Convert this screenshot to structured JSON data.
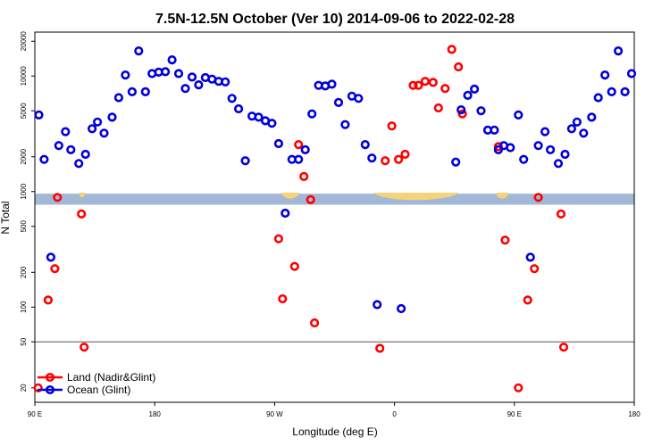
{
  "chart_data": {
    "type": "scatter",
    "title": "7.5N-12.5N October (Ver 10)   2014-09-06 to 2022-02-28",
    "xlabel": "Longitude (deg E)",
    "ylabel": "N Total",
    "x_ticks": [
      {
        "value": 0,
        "label": "90 E"
      },
      {
        "value": 90,
        "label": "180"
      },
      {
        "value": 180,
        "label": "90 W"
      },
      {
        "value": 270,
        "label": "0"
      },
      {
        "value": 360,
        "label": "90 E"
      },
      {
        "value": 450,
        "label": "180"
      }
    ],
    "y_ticks": [
      {
        "value": 20,
        "label": "20"
      },
      {
        "value": 50,
        "label": "50"
      },
      {
        "value": 100,
        "label": "100"
      },
      {
        "value": 200,
        "label": "200"
      },
      {
        "value": 500,
        "label": "500"
      },
      {
        "value": 1000,
        "label": "1000"
      },
      {
        "value": 2000,
        "label": "2000"
      },
      {
        "value": 5000,
        "label": "5000"
      },
      {
        "value": 10000,
        "label": "10000"
      },
      {
        "value": 20000,
        "label": "20000"
      }
    ],
    "xlim": [
      0,
      450
    ],
    "ylim": [
      15,
      24000
    ],
    "y_scale": "log",
    "reference_line": 50,
    "land_band": [
      770,
      960
    ],
    "colors": {
      "land": "#ff0000",
      "ocean": "#0000dd",
      "band": "#a3b8d6",
      "land_fill": "#f5d37a"
    },
    "legend": [
      {
        "name": "Land (Nadir&Glint)",
        "color": "#ff0000"
      },
      {
        "name": "Ocean (Glint)",
        "color": "#0000dd"
      }
    ],
    "series": [
      {
        "name": "Land (Nadir&Glint)",
        "color": "#ff0000",
        "points": [
          [
            2.5,
            20
          ],
          [
            10,
            115
          ],
          [
            15,
            215
          ],
          [
            17,
            890
          ],
          [
            35,
            640
          ],
          [
            37,
            45
          ],
          [
            183,
            390
          ],
          [
            186,
            118
          ],
          [
            195,
            225
          ],
          [
            198,
            2550
          ],
          [
            202,
            1350
          ],
          [
            207,
            850
          ],
          [
            210,
            73
          ],
          [
            259,
            44
          ],
          [
            263,
            1850
          ],
          [
            268,
            3700
          ],
          [
            273,
            1900
          ],
          [
            278,
            2100
          ],
          [
            284,
            8300
          ],
          [
            288,
            8300
          ],
          [
            293,
            9000
          ],
          [
            299,
            8800
          ],
          [
            303,
            5300
          ],
          [
            308,
            7800
          ],
          [
            313,
            17000
          ],
          [
            318,
            12000
          ],
          [
            321,
            4700
          ],
          [
            348,
            2450
          ],
          [
            353,
            380
          ],
          [
            363,
            20
          ],
          [
            370,
            115
          ],
          [
            375,
            215
          ],
          [
            378,
            890
          ],
          [
            395,
            640
          ],
          [
            397,
            45
          ]
        ]
      },
      {
        "name": "Ocean (Glint)",
        "color": "#0000dd",
        "points": [
          [
            3,
            4600
          ],
          [
            7,
            1900
          ],
          [
            12,
            270
          ],
          [
            18,
            2500
          ],
          [
            23,
            3300
          ],
          [
            27,
            2300
          ],
          [
            33,
            1750
          ],
          [
            38,
            2100
          ],
          [
            43,
            3500
          ],
          [
            47,
            4000
          ],
          [
            52,
            3200
          ],
          [
            58,
            4400
          ],
          [
            63,
            6500
          ],
          [
            68,
            10200
          ],
          [
            73,
            7300
          ],
          [
            78,
            16500
          ],
          [
            83,
            7300
          ],
          [
            88,
            10500
          ],
          [
            93,
            10800
          ],
          [
            98,
            10900
          ],
          [
            103,
            13800
          ],
          [
            108,
            10500
          ],
          [
            113,
            7800
          ],
          [
            118,
            9800
          ],
          [
            123,
            8400
          ],
          [
            128,
            9700
          ],
          [
            133,
            9400
          ],
          [
            138,
            9000
          ],
          [
            143,
            8900
          ],
          [
            148,
            6400
          ],
          [
            153,
            5200
          ],
          [
            158,
            1850
          ],
          [
            163,
            4500
          ],
          [
            168,
            4400
          ],
          [
            173,
            4100
          ],
          [
            178,
            3900
          ],
          [
            183,
            2600
          ],
          [
            188,
            650
          ],
          [
            193,
            1900
          ],
          [
            198,
            1900
          ],
          [
            203,
            2300
          ],
          [
            208,
            4700
          ],
          [
            213,
            8300
          ],
          [
            218,
            8200
          ],
          [
            223,
            8500
          ],
          [
            228,
            5900
          ],
          [
            233,
            3800
          ],
          [
            238,
            6700
          ],
          [
            243,
            6400
          ],
          [
            248,
            2550
          ],
          [
            253,
            1950
          ],
          [
            257,
            105
          ],
          [
            275,
            97
          ],
          [
            316,
            1800
          ],
          [
            320,
            5100
          ],
          [
            325,
            6800
          ],
          [
            330,
            7700
          ],
          [
            335,
            5000
          ],
          [
            340,
            3400
          ],
          [
            345,
            3400
          ],
          [
            348,
            2300
          ],
          [
            352,
            2500
          ],
          [
            357,
            2400
          ],
          [
            363,
            4600
          ],
          [
            367,
            1900
          ],
          [
            372,
            270
          ],
          [
            378,
            2500
          ],
          [
            383,
            3300
          ],
          [
            387,
            2300
          ],
          [
            393,
            1750
          ],
          [
            398,
            2100
          ],
          [
            403,
            3500
          ],
          [
            407,
            4000
          ],
          [
            412,
            3200
          ],
          [
            418,
            4400
          ],
          [
            423,
            6500
          ],
          [
            428,
            10200
          ],
          [
            433,
            7300
          ],
          [
            438,
            16500
          ],
          [
            443,
            7300
          ],
          [
            448,
            10500
          ]
        ]
      }
    ]
  }
}
